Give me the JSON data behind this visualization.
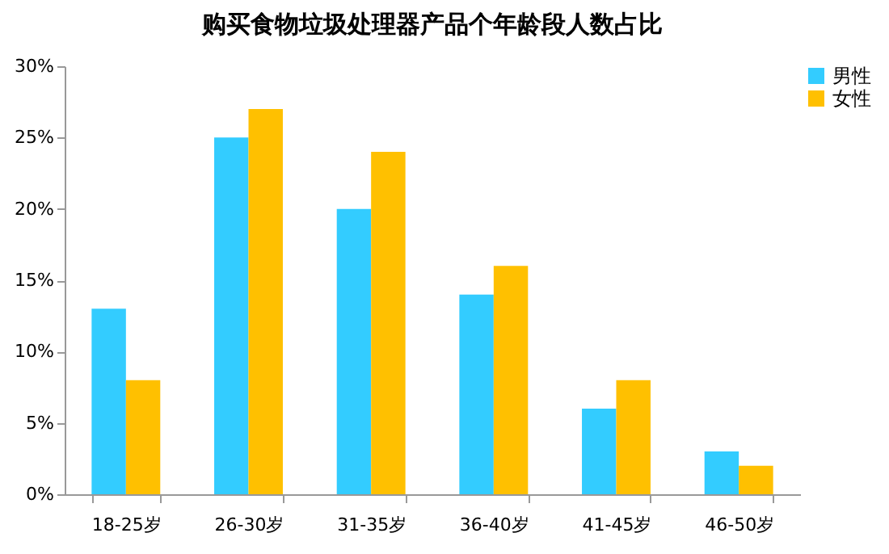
{
  "chart_data": {
    "type": "bar",
    "title": "购买食物垃圾处理器产品个年龄段人数占比",
    "categories": [
      "18-25岁",
      "26-30岁",
      "31-35岁",
      "36-40岁",
      "41-45岁",
      "46-50岁"
    ],
    "series": [
      {
        "name": "男性",
        "color": "#33ccff",
        "values": [
          13,
          25,
          20,
          14,
          6,
          3
        ]
      },
      {
        "name": "女性",
        "color": "#ffc000",
        "values": [
          8,
          27,
          24,
          16,
          8,
          2
        ]
      }
    ],
    "ylim": [
      0,
      30
    ],
    "yticks": [
      {
        "value": 0,
        "label": "0%"
      },
      {
        "value": 5,
        "label": "5%"
      },
      {
        "value": 10,
        "label": "10%"
      },
      {
        "value": 15,
        "label": "15%"
      },
      {
        "value": 20,
        "label": "20%"
      },
      {
        "value": 25,
        "label": "25%"
      },
      {
        "value": 30,
        "label": "30%"
      }
    ],
    "grid": false,
    "legend": "right"
  }
}
